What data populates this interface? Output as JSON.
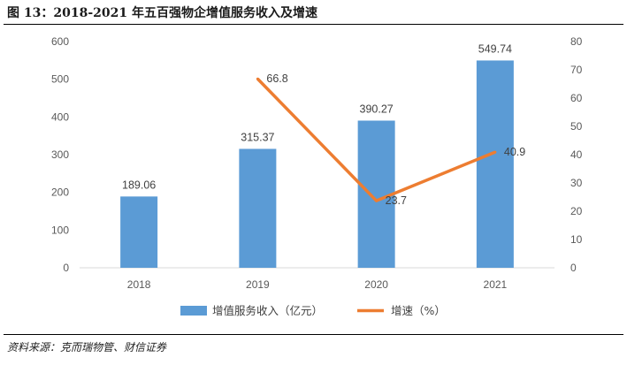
{
  "figure": {
    "title": "图 13：2018-2021 年五百强物企增值服务收入及增速",
    "source": "资料来源：克而瑞物管、财信证券"
  },
  "chart_data": {
    "type": "bar",
    "categories": [
      "2018",
      "2019",
      "2020",
      "2021"
    ],
    "series": [
      {
        "name": "增值服务收入（亿元）",
        "type": "bar",
        "axis": "left",
        "color": "#5B9BD5",
        "values": [
          189.06,
          315.37,
          390.27,
          549.74
        ],
        "labels": [
          "189.06",
          "315.37",
          "390.27",
          "549.74"
        ]
      },
      {
        "name": "增速（%）",
        "type": "line",
        "axis": "right",
        "color": "#ED7D31",
        "values": [
          null,
          66.8,
          23.7,
          40.9
        ],
        "labels": [
          "",
          "66.8",
          "23.7",
          "40.9"
        ]
      }
    ],
    "y_left": {
      "min": 0,
      "max": 600,
      "ticks": [
        "0",
        "100",
        "200",
        "300",
        "400",
        "500",
        "600"
      ]
    },
    "y_right": {
      "min": 0,
      "max": 80,
      "ticks": [
        "0",
        "10",
        "20",
        "30",
        "40",
        "50",
        "60",
        "70",
        "80"
      ]
    },
    "grid": false,
    "legend": "bottom"
  }
}
